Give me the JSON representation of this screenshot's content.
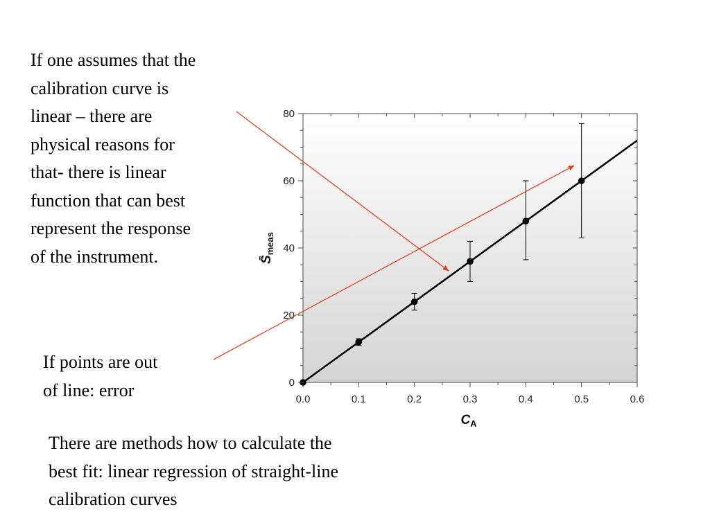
{
  "slide": {
    "text_top": "If one assumes that the\ncalibration curve is\nlinear – there are\nphysical reasons for\nthat- there is linear\nfunction that can best\nrepresent the response\nof the instrument.",
    "text_middle": "If points are out\nof line: error",
    "text_bottom": "There are methods how to calculate the\nbest fit: linear regression of straight-line\ncalibration curves"
  },
  "chart_data": {
    "type": "scatter",
    "xlabel_main": "C",
    "xlabel_sub": "A",
    "ylabel_main": "S̄",
    "ylabel_sub": "meas",
    "xlim": [
      0,
      0.6
    ],
    "ylim": [
      0,
      80
    ],
    "x_ticks": [
      "0.0",
      "0.1",
      "0.2",
      "0.3",
      "0.4",
      "0.5",
      "0.6"
    ],
    "y_ticks": [
      "0",
      "20",
      "40",
      "60",
      "80"
    ],
    "points": [
      {
        "x": 0.0,
        "y": 0.0,
        "err_low": 0.0,
        "err_high": 0.0
      },
      {
        "x": 0.1,
        "y": 12.0,
        "err_low": 11.0,
        "err_high": 13.0
      },
      {
        "x": 0.2,
        "y": 24.0,
        "err_low": 21.5,
        "err_high": 26.5
      },
      {
        "x": 0.3,
        "y": 36.0,
        "err_low": 30.0,
        "err_high": 42.0
      },
      {
        "x": 0.4,
        "y": 48.0,
        "err_low": 36.5,
        "err_high": 60.0
      },
      {
        "x": 0.5,
        "y": 60.0,
        "err_low": 43.0,
        "err_high": 77.0
      }
    ],
    "fit_line": {
      "x0": 0.0,
      "y0": 0.0,
      "x1": 0.6,
      "y1": 72.0
    },
    "background_gradient": [
      "#ffffff",
      "#d4d4d4"
    ],
    "annotation_color": "#e0421e",
    "grid": false
  }
}
